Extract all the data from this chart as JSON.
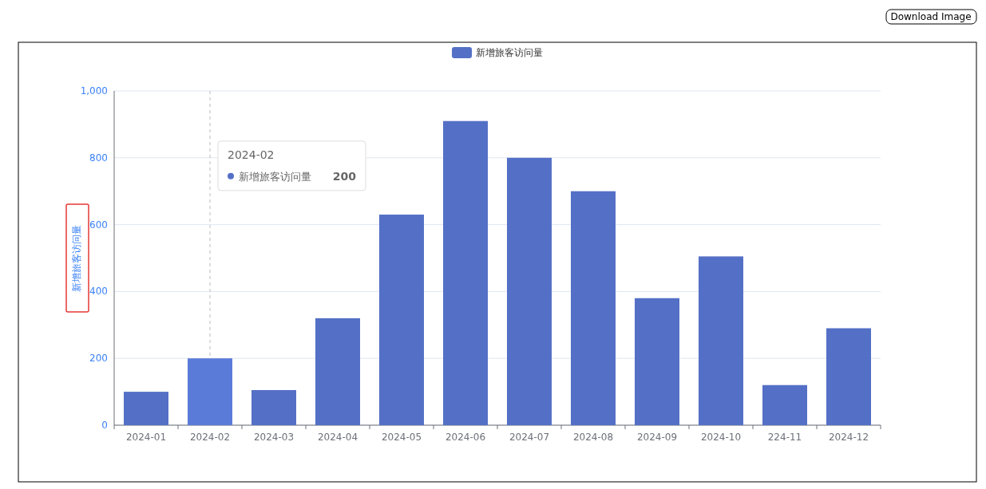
{
  "chart_data": {
    "type": "bar",
    "ylabel": "新增旅客访问量",
    "categories": [
      "2024-01",
      "2024-02",
      "2024-03",
      "2024-04",
      "2024-05",
      "2024-06",
      "2024-07",
      "2024-08",
      "2024-09",
      "2024-10",
      "224-11",
      "2024-12"
    ],
    "series": [
      {
        "name": "新增旅客访问量",
        "color": "#5470c6",
        "colors": [
          "#5470c6",
          "#5b7bd9",
          "#5470c6",
          "#5470c6",
          "#5470c6",
          "#5470c6",
          "#5470c6",
          "#5470c6",
          "#5470c6",
          "#5470c6",
          "#5470c6",
          "#5470c6"
        ],
        "values": [
          100,
          200,
          105,
          320,
          630,
          910,
          800,
          700,
          380,
          505,
          120,
          290
        ]
      }
    ],
    "ylim": [
      0,
      1000
    ],
    "yticks": [
      0,
      200,
      400,
      600,
      800,
      {
        "value": 1000,
        "label": "1,000"
      }
    ],
    "grid": "y",
    "legend": "top",
    "ref_lines": [
      {
        "axis": "x",
        "value": "2024-02",
        "color": "#bbbbbb",
        "line_style": "dashed"
      }
    ],
    "annotations": [
      "2024-02",
      "新增旅客访问量",
      "200",
      "Download Image"
    ]
  }
}
